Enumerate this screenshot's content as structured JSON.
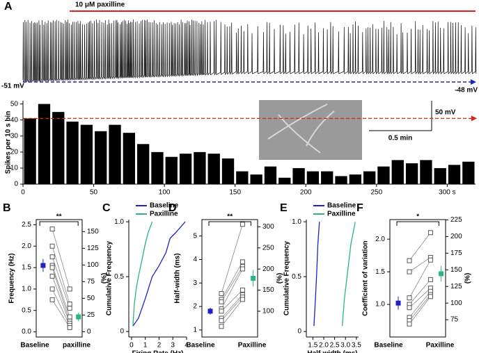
{
  "chart_data": [
    {
      "type": "histogram",
      "label": "A",
      "title": "10 μM paxilline",
      "ylabel": "Spikes per 10 s bin",
      "bins": [
        0,
        10,
        20,
        30,
        40,
        50,
        60,
        70,
        80,
        90,
        100,
        110,
        120,
        130,
        140,
        150,
        160,
        170,
        180,
        190,
        200,
        210,
        220,
        230,
        240,
        250,
        260,
        270,
        280,
        290,
        300,
        310,
        320
      ],
      "values": [
        41,
        50,
        45,
        39,
        37,
        33,
        37,
        32,
        25,
        20,
        17,
        19,
        20,
        19,
        16,
        8,
        6,
        11,
        4,
        10,
        8,
        8,
        5,
        6,
        8,
        11,
        15,
        13,
        15,
        10,
        12,
        14
      ],
      "color": "#000000",
      "reference_line": 41,
      "reference_color": "#e0201b",
      "xlim": [
        0,
        320
      ],
      "xticks": [
        0,
        50,
        100,
        150,
        200,
        {
          "value": 250,
          "label": "250"
        },
        {
          "value": 300,
          "label": "300 s"
        }
      ],
      "ylim": [
        0,
        52
      ],
      "yticks": [
        0,
        10,
        20,
        30,
        40,
        50
      ],
      "annotations": [
        "-51 mV",
        "-48 mV",
        "50 mV",
        "0.5 min"
      ]
    },
    {
      "type": "paired",
      "label": "B",
      "categories": [
        "Baseline",
        "paxilline"
      ],
      "ylabel": "Frequency (Hz)",
      "y2label": "(%)",
      "pairs": [
        [
          2.4,
          1.0
        ],
        [
          2.0,
          0.65
        ],
        [
          1.75,
          0.55
        ],
        [
          1.55,
          0.35
        ],
        [
          1.5,
          0.25
        ],
        [
          1.3,
          0.2
        ],
        [
          1.0,
          0.15
        ],
        [
          0.75,
          0.1
        ]
      ],
      "means": [
        1.55,
        0.35
      ],
      "errors": [
        0.15,
        0.1
      ],
      "mean_colors": [
        "#1c22c4",
        "#2ab57d"
      ],
      "significance": "**",
      "ylim": [
        -0.12,
        2.62
      ],
      "yticks": [
        {
          "value": 0,
          "label": "0.0"
        },
        0.5,
        {
          "value": 1,
          "label": "1.0"
        },
        1.5,
        {
          "value": 2,
          "label": "2.0"
        },
        2.5
      ],
      "y2lim": [
        -8,
        168
      ],
      "y2ticks": [
        0,
        25,
        50,
        75,
        100,
        125,
        150
      ]
    },
    {
      "type": "line",
      "label": "C",
      "xlabel": "Firing Rate (Hz)",
      "ylabel": "Cumulative Frequency",
      "series": [
        {
          "name": "Baseline",
          "color": "#1c22c4",
          "x": [
            0.1,
            0.5,
            1.0,
            1.5,
            2.0,
            2.5,
            2.8,
            3.2,
            3.9
          ],
          "values": [
            0.05,
            0.12,
            0.3,
            0.5,
            0.6,
            0.72,
            0.85,
            0.9,
            1.0
          ]
        },
        {
          "name": "Paxilline",
          "color": "#2ab57d",
          "x": [
            0.1,
            0.2,
            0.35,
            0.5,
            0.7,
            1.0,
            1.2,
            1.5
          ],
          "values": [
            0.05,
            0.25,
            0.4,
            0.5,
            0.62,
            0.8,
            0.9,
            1.0
          ]
        }
      ],
      "xlim": [
        -0.2,
        4
      ],
      "xticks": [
        0,
        1,
        2,
        3,
        4
      ],
      "ylim": [
        -0.05,
        1.02
      ],
      "yticks": [
        0,
        0.5,
        {
          "value": 1,
          "label": "1.0"
        }
      ]
    },
    {
      "type": "paired",
      "label": "D",
      "categories": [
        "Baseline",
        "Paxilline"
      ],
      "ylabel": "Half-width (ms)",
      "y2label": "(%)",
      "pairs": [
        [
          2.55,
          5.5
        ],
        [
          2.3,
          3.9
        ],
        [
          2.2,
          3.7
        ],
        [
          1.9,
          3.6
        ],
        [
          1.8,
          2.7
        ],
        [
          1.5,
          2.5
        ],
        [
          1.4,
          2.4
        ],
        [
          1.15,
          2.3
        ]
      ],
      "means": [
        1.8,
        3.2
      ],
      "errors": [
        0.15,
        0.35
      ],
      "mean_colors": [
        "#1c22c4",
        "#2ab57d"
      ],
      "significance": "**",
      "ylim": [
        0.7,
        5.7
      ],
      "yticks": [
        1,
        2,
        3,
        4,
        5
      ],
      "y2lim": [
        39,
        317
      ],
      "y2ticks": [
        100,
        150,
        200,
        250,
        300
      ]
    },
    {
      "type": "line",
      "label": "E",
      "xlabel": "Half-width (ms)",
      "ylabel": "Cumulative Frequency",
      "series": [
        {
          "name": "Baseline",
          "color": "#1c22c4",
          "x": [
            1.55,
            1.62,
            1.68,
            1.73,
            1.8
          ],
          "values": [
            0.05,
            0.3,
            0.55,
            0.8,
            1.0
          ]
        },
        {
          "name": "Paxilline",
          "color": "#2ab57d",
          "x": [
            2.85,
            2.95,
            3.1,
            3.25,
            3.45
          ],
          "values": [
            0.05,
            0.3,
            0.55,
            0.8,
            1.0
          ]
        }
      ],
      "xlim": [
        1.2,
        3.6
      ],
      "xticks": [
        1.5,
        {
          "value": 2,
          "label": "2.0"
        },
        2.5,
        {
          "value": 3,
          "label": "3.0"
        },
        3.5
      ],
      "ylim": [
        -0.05,
        1.02
      ],
      "yticks": [
        0,
        0.5,
        {
          "value": 1,
          "label": "1.0"
        }
      ]
    },
    {
      "type": "paired",
      "label": "F",
      "categories": [
        "Baseline",
        "Paxilline"
      ],
      "ylabel": "Coefficient of variation",
      "y2label": "(%)",
      "pairs": [
        [
          1.67,
          2.1
        ],
        [
          1.5,
          1.72
        ],
        [
          1.1,
          1.68
        ],
        [
          1.0,
          1.38
        ],
        [
          0.95,
          1.25
        ],
        [
          0.8,
          1.2
        ],
        [
          0.75,
          1.15
        ],
        [
          0.7,
          1.12
        ]
      ],
      "means": [
        1.02,
        1.47
      ],
      "errors": [
        0.1,
        0.12
      ],
      "mean_colors": [
        "#1c22c4",
        "#2ab57d"
      ],
      "significance": "*",
      "ylim": [
        0.5,
        2.3
      ],
      "yticks": [
        {
          "value": 1,
          "label": "1.0"
        },
        1.5,
        {
          "value": 2,
          "label": "2.0"
        }
      ],
      "y2lim": [
        49,
        225.5
      ],
      "y2ticks": [
        75,
        100,
        125,
        150,
        175,
        200,
        225
      ]
    }
  ]
}
